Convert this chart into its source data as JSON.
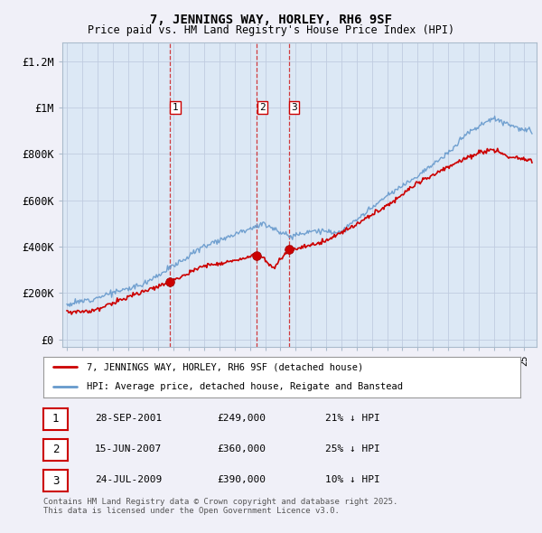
{
  "title": "7, JENNINGS WAY, HORLEY, RH6 9SF",
  "subtitle": "Price paid vs. HM Land Registry's House Price Index (HPI)",
  "ylabel_ticks": [
    "£0",
    "£200K",
    "£400K",
    "£600K",
    "£800K",
    "£1M",
    "£1.2M"
  ],
  "ytick_values": [
    0,
    200000,
    400000,
    600000,
    800000,
    1000000,
    1200000
  ],
  "ylim": [
    -30000,
    1280000
  ],
  "xlim_start": 1994.7,
  "xlim_end": 2025.8,
  "sale_color": "#cc0000",
  "hpi_color": "#6699cc",
  "sale_dates": [
    2001.75,
    2007.46,
    2009.56
  ],
  "sale_prices": [
    249000,
    360000,
    390000
  ],
  "sale_labels": [
    "1",
    "2",
    "3"
  ],
  "vline_dates": [
    2001.75,
    2007.46,
    2009.56
  ],
  "legend_sale": "7, JENNINGS WAY, HORLEY, RH6 9SF (detached house)",
  "legend_hpi": "HPI: Average price, detached house, Reigate and Banstead",
  "table_rows": [
    {
      "num": "1",
      "date": "28-SEP-2001",
      "price": "£249,000",
      "hpi": "21% ↓ HPI"
    },
    {
      "num": "2",
      "date": "15-JUN-2007",
      "price": "£360,000",
      "hpi": "25% ↓ HPI"
    },
    {
      "num": "3",
      "date": "24-JUL-2009",
      "price": "£390,000",
      "hpi": "10% ↓ HPI"
    }
  ],
  "footnote": "Contains HM Land Registry data © Crown copyright and database right 2025.\nThis data is licensed under the Open Government Licence v3.0.",
  "background_color": "#f0f0f8",
  "plot_bg_color": "#dce8f5"
}
